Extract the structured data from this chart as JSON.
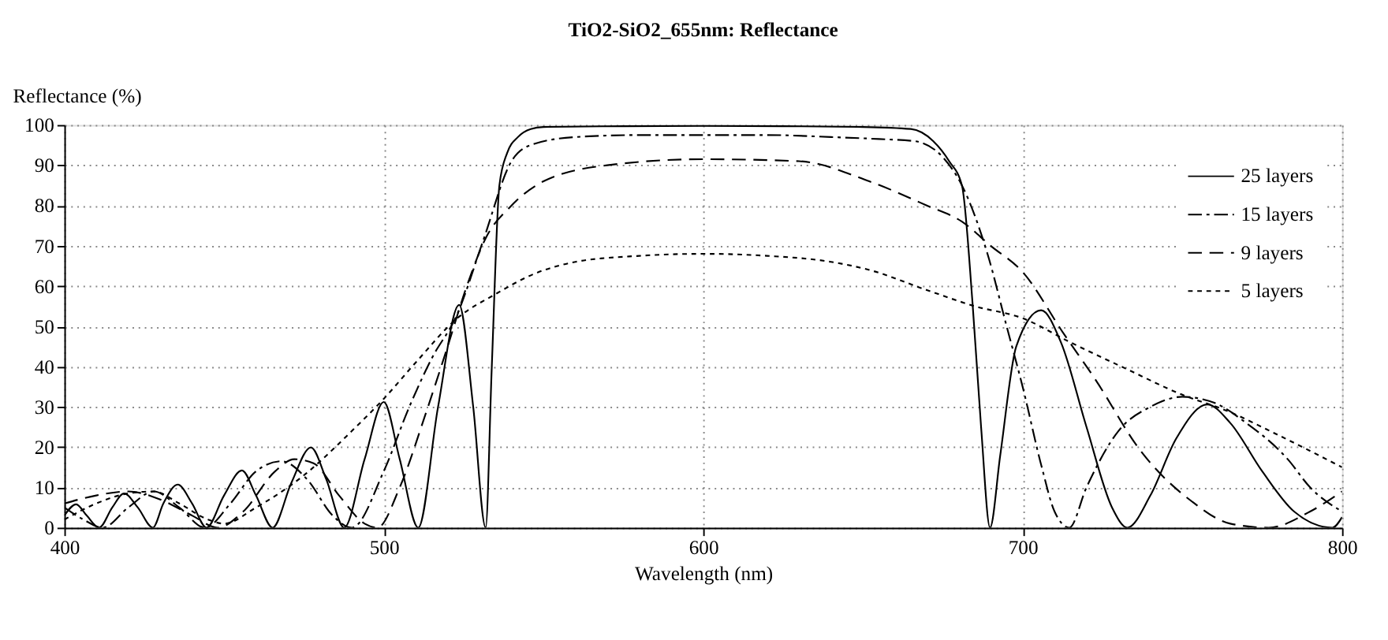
{
  "chart_data": {
    "type": "line",
    "title": "TiO2-SiO2_655nm: Reflectance",
    "xlabel": "Wavelength (nm)",
    "ylabel": "Reflectance (%)",
    "xlim": [
      400,
      800
    ],
    "xticks": [
      400,
      500,
      600,
      700,
      800
    ],
    "ylim": [
      0,
      100
    ],
    "yticks": [
      0,
      10,
      20,
      30,
      40,
      50,
      60,
      70,
      80,
      90,
      100
    ],
    "grid": true,
    "legend": "top right",
    "series": [
      {
        "name": "25 layers",
        "color": "#000000",
        "line_style": "solid",
        "x": [
          400,
          403.7,
          407,
          410.9,
          415,
          418.7,
          423,
          427.7,
          431,
          435.5,
          440,
          444.5,
          450,
          455.6,
          460,
          465.2,
          471,
          477.2,
          482,
          487.6,
          494,
          500,
          505,
          510.8,
          517,
          523.6,
          528,
          531.9,
          533.8,
          536.2,
          538.6,
          542,
          546,
          550,
          575,
          600,
          625,
          650,
          665,
          672,
          677,
          681,
          684.3,
          687,
          689.8,
          693,
          698,
          705.8,
          712,
          720,
          728,
          732.8,
          740,
          748,
          757.8,
          765,
          775,
          785,
          797,
          800
        ],
        "values": [
          3,
          5.8,
          3,
          0,
          5,
          8.5,
          5,
          0,
          6,
          10.7,
          6,
          0,
          8,
          14.2,
          8,
          0,
          11,
          19.9,
          12,
          0,
          17,
          31.2,
          17,
          0,
          30,
          55.3,
          30,
          0,
          39.6,
          85,
          93,
          97,
          99,
          99.5,
          99.7,
          99.8,
          99.7,
          99.5,
          99,
          96,
          91,
          85,
          56,
          25,
          0,
          18,
          45,
          54,
          46,
          25,
          5,
          0,
          8,
          22,
          30.6,
          26,
          14,
          4,
          0,
          2.6
        ]
      },
      {
        "name": "15 layers",
        "color": "#000000",
        "line_style": "dashdot",
        "x": [
          400,
          406,
          412,
          420,
          428,
          436,
          444,
          452,
          460,
          468,
          476,
          484,
          490,
          500,
          508,
          515,
          523,
          531,
          540,
          546,
          560,
          580,
          600,
          620,
          640,
          655,
          666,
          675,
          681,
          689,
          695,
          700,
          706,
          710,
          714.6,
          720,
          730,
          740,
          750,
          760,
          770,
          783,
          790,
          800
        ],
        "values": [
          5,
          2,
          0,
          5,
          9,
          5,
          0,
          6,
          14,
          16.5,
          12,
          3,
          0,
          14,
          30,
          42,
          53,
          71,
          91,
          95,
          97,
          97.5,
          97.5,
          97.5,
          97,
          96.5,
          96,
          92,
          85,
          68,
          50,
          35,
          15,
          4,
          0,
          10,
          24,
          30,
          32.5,
          31,
          26,
          17,
          10,
          4
        ]
      },
      {
        "name": "9 layers",
        "color": "#000000",
        "line_style": "dashed",
        "x": [
          400,
          410,
          420,
          430,
          440,
          448,
          456,
          466,
          472,
          478,
          486,
          494,
          498,
          505,
          513,
          520,
          526,
          532,
          540,
          550,
          570,
          600,
          630,
          652,
          670,
          681,
          690,
          700,
          713,
          722.6,
          737,
          753,
          765,
          777,
          790,
          800
        ],
        "values": [
          6,
          8,
          9,
          7,
          3,
          0,
          4,
          14,
          17,
          16,
          8,
          1,
          0,
          10,
          28,
          45,
          60,
          72,
          80,
          86,
          90,
          91.5,
          91,
          86,
          80,
          76,
          70,
          63.5,
          48,
          37,
          19,
          6.5,
          1,
          0,
          4,
          9
        ]
      },
      {
        "name": "5 layers",
        "color": "#000000",
        "line_style": "dotted",
        "x": [
          400,
          410,
          420,
          428,
          436,
          445,
          450,
          460,
          475,
          490,
          500,
          510,
          523,
          535,
          547,
          560,
          580,
          600,
          620,
          640,
          652,
          670,
          685,
          700,
          715,
          732,
          750,
          764,
          780,
          800
        ],
        "values": [
          2,
          6,
          8.5,
          9,
          6,
          2,
          1,
          5,
          13,
          24,
          32,
          41,
          52,
          58,
          63,
          66,
          67.5,
          68,
          67.5,
          66,
          64,
          59,
          55,
          52,
          46,
          39.6,
          33,
          29,
          23,
          15
        ]
      }
    ]
  }
}
